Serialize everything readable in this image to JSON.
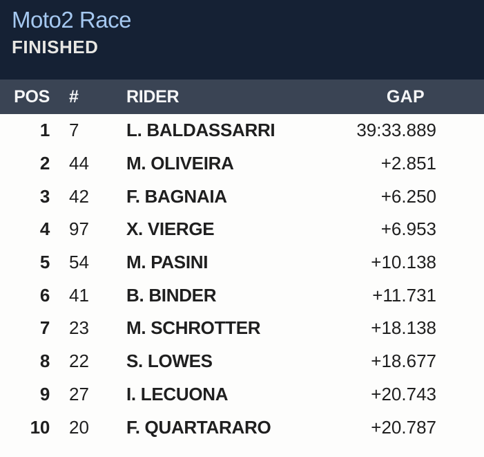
{
  "header": {
    "title": "Moto2 Race",
    "status": "FINISHED"
  },
  "table": {
    "columns": {
      "pos": "POS",
      "num": "#",
      "rider": "RIDER",
      "gap": "GAP"
    },
    "rows": [
      {
        "pos": "1",
        "num": "7",
        "rider": "L. BALDASSARRI",
        "gap": "39:33.889"
      },
      {
        "pos": "2",
        "num": "44",
        "rider": "M. OLIVEIRA",
        "gap": "+2.851"
      },
      {
        "pos": "3",
        "num": "42",
        "rider": "F. BAGNAIA",
        "gap": "+6.250"
      },
      {
        "pos": "4",
        "num": "97",
        "rider": "X. VIERGE",
        "gap": "+6.953"
      },
      {
        "pos": "5",
        "num": "54",
        "rider": "M. PASINI",
        "gap": "+10.138"
      },
      {
        "pos": "6",
        "num": "41",
        "rider": "B. BINDER",
        "gap": "+11.731"
      },
      {
        "pos": "7",
        "num": "23",
        "rider": "M. SCHROTTER",
        "gap": "+18.138"
      },
      {
        "pos": "8",
        "num": "22",
        "rider": "S. LOWES",
        "gap": "+18.677"
      },
      {
        "pos": "9",
        "num": "27",
        "rider": "I. LECUONA",
        "gap": "+20.743"
      },
      {
        "pos": "10",
        "num": "20",
        "rider": "F. QUARTARARO",
        "gap": "+20.787"
      }
    ]
  },
  "colors": {
    "header_bg": "#152134",
    "header_title": "#a5c8f0",
    "header_status": "#e8e7e3",
    "table_header_bg": "#3a4454",
    "table_header_text": "#f5f6f7",
    "row_bg": "#fdfdfc",
    "row_text": "#1f1f1f"
  }
}
